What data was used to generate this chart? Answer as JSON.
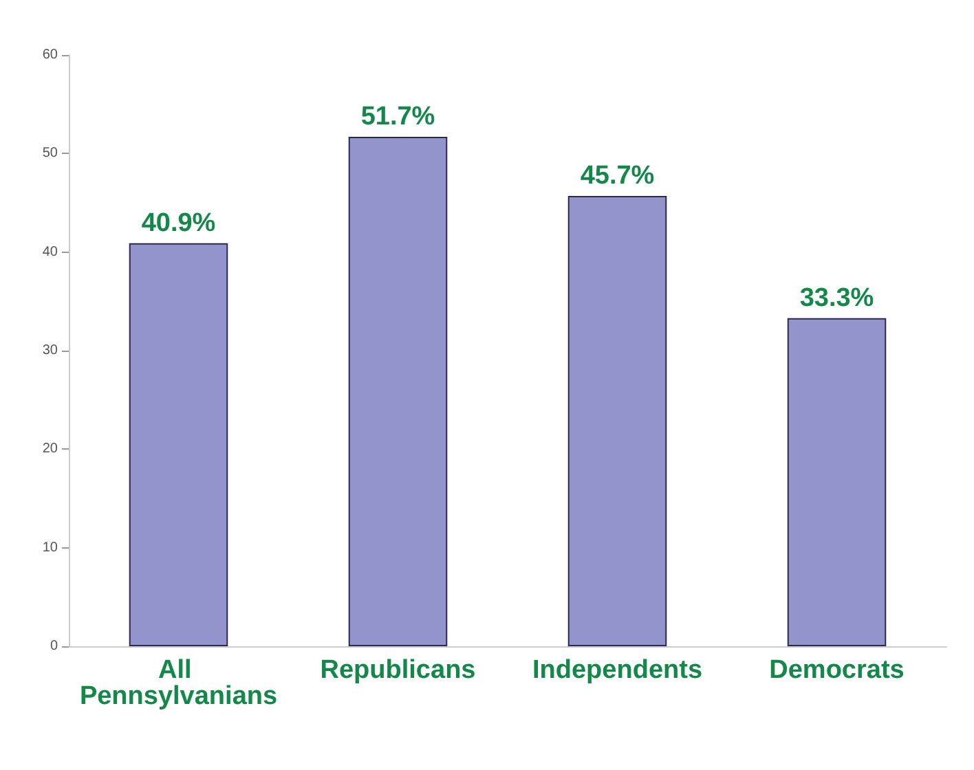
{
  "chart_data": {
    "type": "bar",
    "categories": [
      "All Pennsylvanians",
      "Republicans",
      "Independents",
      "Democrats"
    ],
    "values": [
      40.9,
      51.7,
      45.7,
      33.3
    ],
    "value_labels": [
      "40.9%",
      "51.7%",
      "45.7%",
      "33.3%"
    ],
    "color": "#9494cc",
    "ylim": [
      0,
      60
    ],
    "yticks": [
      0,
      10,
      20,
      30,
      40,
      50,
      60
    ],
    "grid": false
  }
}
